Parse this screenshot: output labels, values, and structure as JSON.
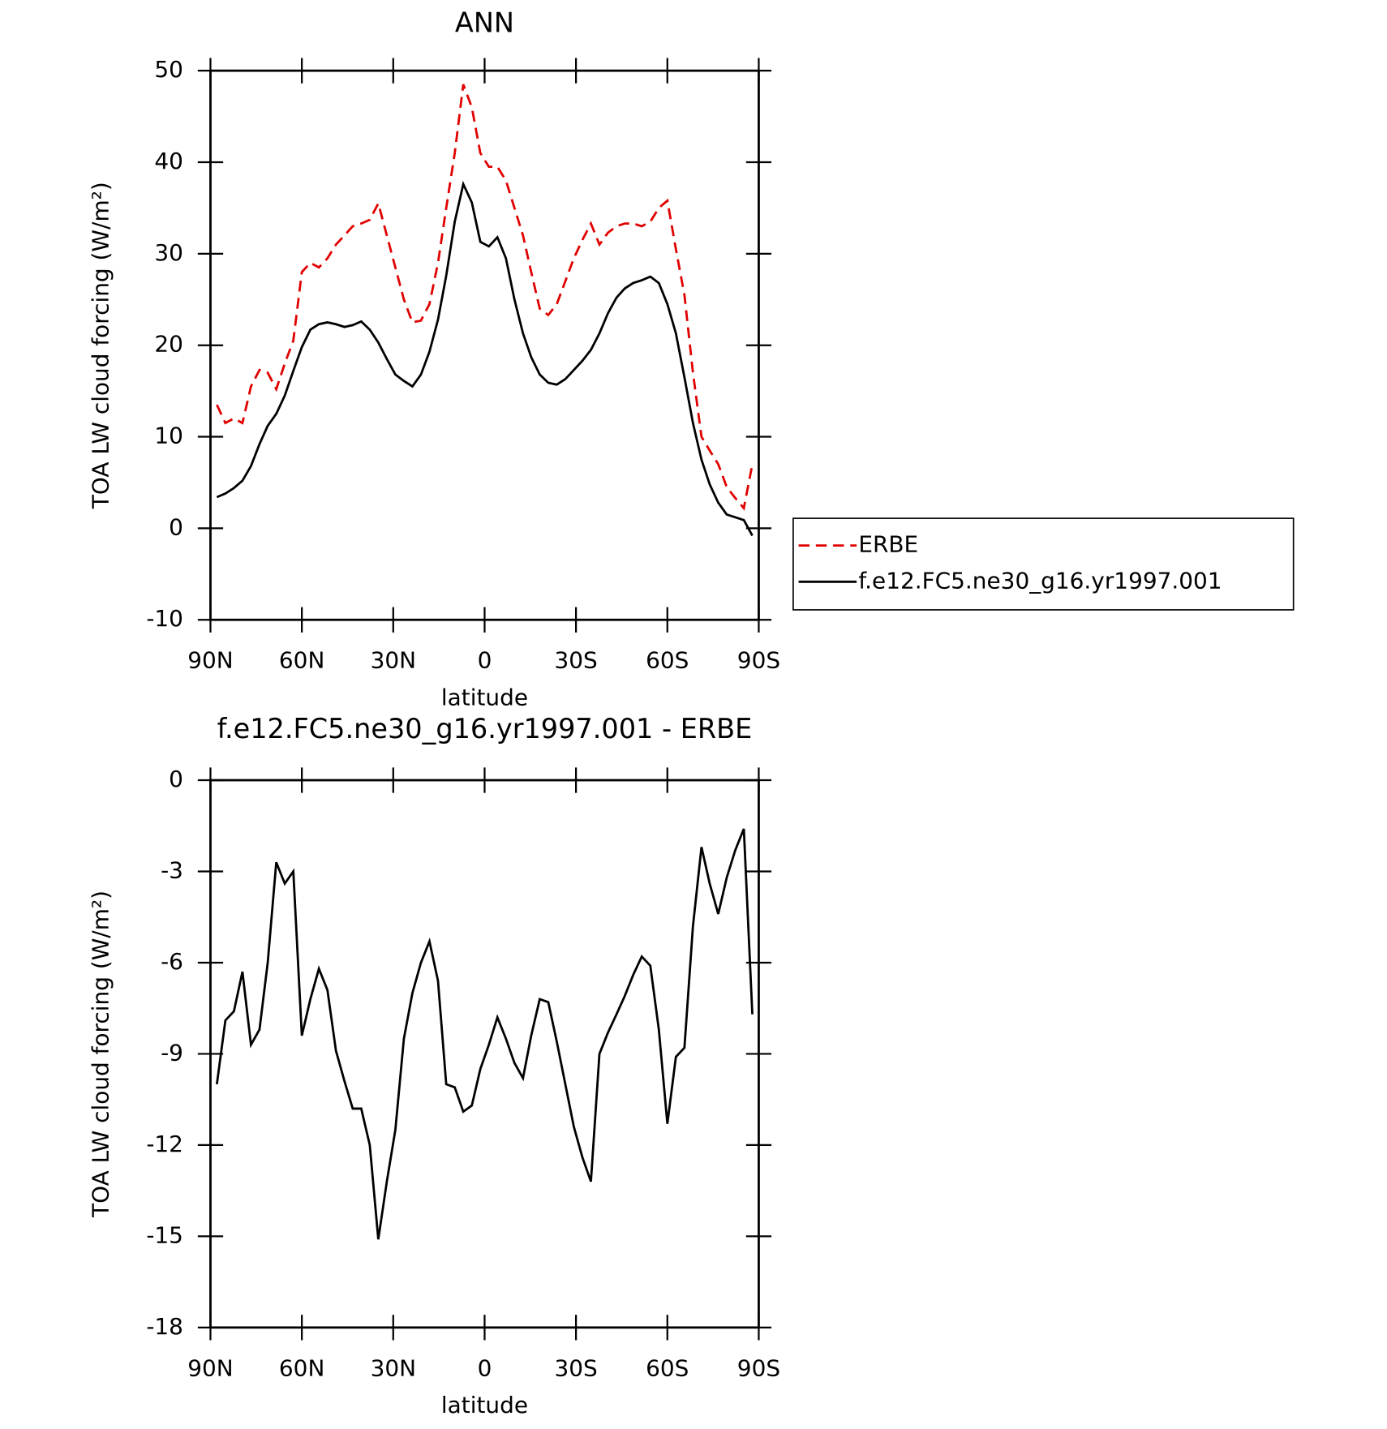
{
  "chart_data": [
    {
      "type": "line",
      "title": "ANN",
      "xlabel": "latitude",
      "ylabel": "TOA LW cloud forcing (W/m²)",
      "x": [
        87.9,
        85.1,
        82.3,
        79.5,
        76.7,
        73.9,
        71.2,
        68.4,
        65.6,
        62.8,
        60.0,
        57.2,
        54.4,
        51.6,
        48.8,
        46.0,
        43.3,
        40.5,
        37.7,
        34.9,
        32.1,
        29.3,
        26.5,
        23.7,
        20.9,
        18.1,
        15.3,
        12.6,
        9.8,
        7.0,
        4.2,
        1.4,
        -1.4,
        -4.2,
        -7.0,
        -9.8,
        -12.6,
        -15.3,
        -18.1,
        -20.9,
        -23.7,
        -26.5,
        -29.3,
        -32.1,
        -34.9,
        -37.7,
        -40.5,
        -43.3,
        -46.0,
        -48.8,
        -51.6,
        -54.4,
        -57.2,
        -60.0,
        -62.8,
        -65.6,
        -68.4,
        -71.2,
        -73.9,
        -76.7,
        -79.5,
        -82.3,
        -85.1,
        -87.9
      ],
      "series": [
        {
          "name": "ERBE",
          "color": "#e00000",
          "style": "dashed",
          "values": [
            13.5,
            11.5,
            12.0,
            11.5,
            15.5,
            17.3,
            17.0,
            15.2,
            18.0,
            20.5,
            28.0,
            29.0,
            28.5,
            29.5,
            31.0,
            32.0,
            33.0,
            33.3,
            33.7,
            35.5,
            32.0,
            28.5,
            25.0,
            22.5,
            22.7,
            24.5,
            29.0,
            35.0,
            41.0,
            48.5,
            46.0,
            41.0,
            39.5,
            39.5,
            38.0,
            35.0,
            32.0,
            28.0,
            24.0,
            23.3,
            24.5,
            27.0,
            29.5,
            31.5,
            33.3,
            31.0,
            32.3,
            33.0,
            33.3,
            33.3,
            33.0,
            33.5,
            35.0,
            35.8,
            30.5,
            25.5,
            17.0,
            10.0,
            8.5,
            7.0,
            4.5,
            3.3,
            2.2,
            7.0
          ]
        },
        {
          "name": "f.e12.FC5.ne30_g16.yr1997.001",
          "color": "#000000",
          "style": "solid",
          "values": [
            3.4,
            3.8,
            4.4,
            5.2,
            6.8,
            9.2,
            11.2,
            12.5,
            14.5,
            17.2,
            19.8,
            21.7,
            22.3,
            22.5,
            22.3,
            22.0,
            22.2,
            22.6,
            21.7,
            20.3,
            18.5,
            16.8,
            16.1,
            15.5,
            16.8,
            19.3,
            22.8,
            27.6,
            33.5,
            37.6,
            35.6,
            31.3,
            30.8,
            31.8,
            29.5,
            25.0,
            21.3,
            18.7,
            16.8,
            15.9,
            15.7,
            16.3,
            17.3,
            18.3,
            19.5,
            21.3,
            23.5,
            25.2,
            26.2,
            26.8,
            27.1,
            27.5,
            26.8,
            24.5,
            21.3,
            16.5,
            11.5,
            7.5,
            4.8,
            2.8,
            1.5,
            1.2,
            0.9,
            -0.8
          ]
        }
      ],
      "xlim": [
        90,
        -90
      ],
      "xticks": [
        {
          "value": 90,
          "label": "90N"
        },
        {
          "value": 60,
          "label": "60N"
        },
        {
          "value": 30,
          "label": "30N"
        },
        0,
        {
          "value": -30,
          "label": "30S"
        },
        {
          "value": -60,
          "label": "60S"
        },
        {
          "value": -90,
          "label": "90S"
        }
      ],
      "ylim": [
        -10,
        50
      ],
      "yticks": [
        -10,
        0,
        10,
        20,
        30,
        40,
        50
      ],
      "legend": "right"
    },
    {
      "type": "line",
      "title": "f.e12.FC5.ne30_g16.yr1997.001 - ERBE",
      "xlabel": "latitude",
      "ylabel": "TOA LW cloud forcing (W/m²)",
      "x": [
        87.9,
        85.1,
        82.3,
        79.5,
        76.7,
        73.9,
        71.2,
        68.4,
        65.6,
        62.8,
        60.0,
        57.2,
        54.4,
        51.6,
        48.8,
        46.0,
        43.3,
        40.5,
        37.7,
        34.9,
        32.1,
        29.3,
        26.5,
        23.7,
        20.9,
        18.1,
        15.3,
        12.6,
        9.8,
        7.0,
        4.2,
        1.4,
        -1.4,
        -4.2,
        -7.0,
        -9.8,
        -12.6,
        -15.3,
        -18.1,
        -20.9,
        -23.7,
        -26.5,
        -29.3,
        -32.1,
        -34.9,
        -37.7,
        -40.5,
        -43.3,
        -46.0,
        -48.8,
        -51.6,
        -54.4,
        -57.2,
        -60.0,
        -62.8,
        -65.6,
        -68.4,
        -71.2,
        -73.9,
        -76.7,
        -79.5,
        -82.3,
        -85.1,
        -87.9
      ],
      "color": "#000000",
      "values": [
        -10.0,
        -7.9,
        -7.6,
        -6.3,
        -8.7,
        -8.2,
        -6.0,
        -2.7,
        -3.4,
        -3.0,
        -8.4,
        -7.2,
        -6.2,
        -6.9,
        -8.9,
        -9.9,
        -10.8,
        -10.8,
        -12.0,
        -15.1,
        -13.2,
        -11.5,
        -8.5,
        -7.0,
        -6.0,
        -5.3,
        -6.6,
        -10.0,
        -10.1,
        -10.9,
        -10.7,
        -9.5,
        -8.7,
        -7.8,
        -8.5,
        -9.3,
        -9.8,
        -8.4,
        -7.2,
        -7.3,
        -8.6,
        -10.0,
        -11.4,
        -12.4,
        -13.2,
        -9.0,
        -8.3,
        -7.7,
        -7.1,
        -6.4,
        -5.8,
        -6.1,
        -8.2,
        -11.3,
        -9.1,
        -8.8,
        -4.8,
        -2.2,
        -3.4,
        -4.4,
        -3.2,
        -2.3,
        -1.6,
        -7.7
      ],
      "xlim": [
        90,
        -90
      ],
      "xticks": [
        {
          "value": 90,
          "label": "90N"
        },
        {
          "value": 60,
          "label": "60N"
        },
        {
          "value": 30,
          "label": "30N"
        },
        0,
        {
          "value": -30,
          "label": "30S"
        },
        {
          "value": -60,
          "label": "60S"
        },
        {
          "value": -90,
          "label": "90S"
        }
      ],
      "ylim": [
        -18,
        0
      ],
      "yticks": [
        -18,
        -15,
        -12,
        -9,
        -6,
        -3,
        0
      ]
    }
  ]
}
